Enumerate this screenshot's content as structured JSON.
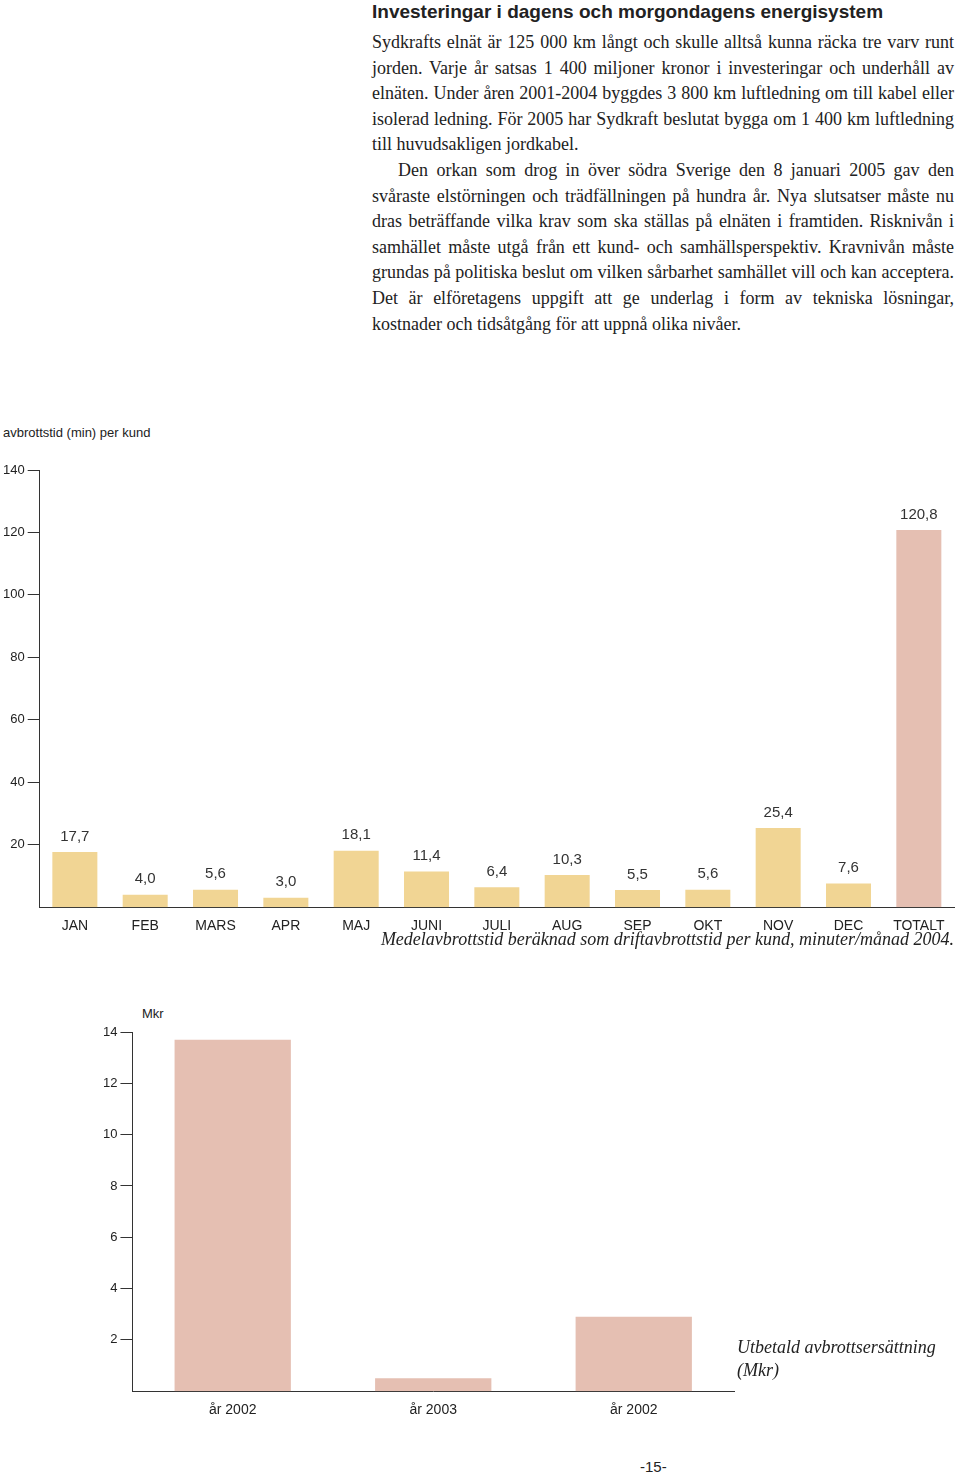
{
  "header": {
    "title": "Investeringar i dagens och morgondagens energisystem"
  },
  "paragraphs": [
    "Sydkrafts elnät är 125 000 km långt och skulle alltså kunna räcka tre varv runt jorden. Varje år satsas 1 400 miljoner kronor i investeringar och underhåll av elnäten. Under åren 2001-2004 byggdes 3 800 km luftledning om till kabel eller isolerad ledning. För 2005 har Sydkraft beslutat bygga om 1 400 km luftledning till huvudsakligen jordkabel.",
    "Den orkan som drog in över södra Sverige den 8 januari 2005 gav den svåraste elstörningen och trädfällningen på hundra år. Nya slutsatser måste nu dras beträffande vilka krav som ska ställas på elnäten i framtiden. Risknivån i samhället måste utgå från ett kund- och samhällsperspektiv. Kravnivån måste grundas på politiska beslut om vilken sårbarhet samhället vill och kan acceptera. Det är elföretagens uppgift att ge underlag i form av tekniska lösningar, kostnader och tidsåtgång för att uppnå olika nivåer."
  ],
  "chart_data": [
    {
      "type": "bar",
      "title": "Medelavbrottstid beräknad som driftavbrottstid per kund, minuter/månad 2004.",
      "ylabel": "avbrottstid (min) per kund",
      "categories": [
        "JAN",
        "FEB",
        "MARS",
        "APR",
        "MAJ",
        "JUNI",
        "JULI",
        "AUG",
        "SEP",
        "OKT",
        "NOV",
        "DEC",
        "TOTALT"
      ],
      "values": [
        17.7,
        4.0,
        5.6,
        3.0,
        18.1,
        11.4,
        6.4,
        10.3,
        5.5,
        5.6,
        25.4,
        7.6,
        120.8
      ],
      "value_labels": [
        "17,7",
        "4,0",
        "5,6",
        "3,0",
        "18,1",
        "11,4",
        "6,4",
        "10,3",
        "5,5",
        "5,6",
        "25,4",
        "7,6",
        "120,8"
      ],
      "colors": [
        "#f1d594",
        "#f1d594",
        "#f1d594",
        "#f1d594",
        "#f1d594",
        "#f1d594",
        "#f1d594",
        "#f1d594",
        "#f1d594",
        "#f1d594",
        "#f1d594",
        "#f1d594",
        "#e5bfb2"
      ],
      "ylim": [
        0,
        140
      ],
      "yticks": [
        20,
        40,
        60,
        80,
        100,
        120,
        140
      ],
      "grid": false,
      "data_labels": true
    },
    {
      "type": "bar",
      "title": "Utbetald avbrottsersättning (Mkr)",
      "ylabel": "Mkr",
      "categories": [
        "år 2002",
        "år 2003",
        "år 2002"
      ],
      "values": [
        13.7,
        0.5,
        2.9
      ],
      "color": "#e5bfb2",
      "ylim": [
        0,
        14
      ],
      "yticks": [
        2,
        4,
        6,
        8,
        10,
        12,
        14
      ],
      "grid": false,
      "data_labels": false
    }
  ],
  "page_number": "-15-"
}
